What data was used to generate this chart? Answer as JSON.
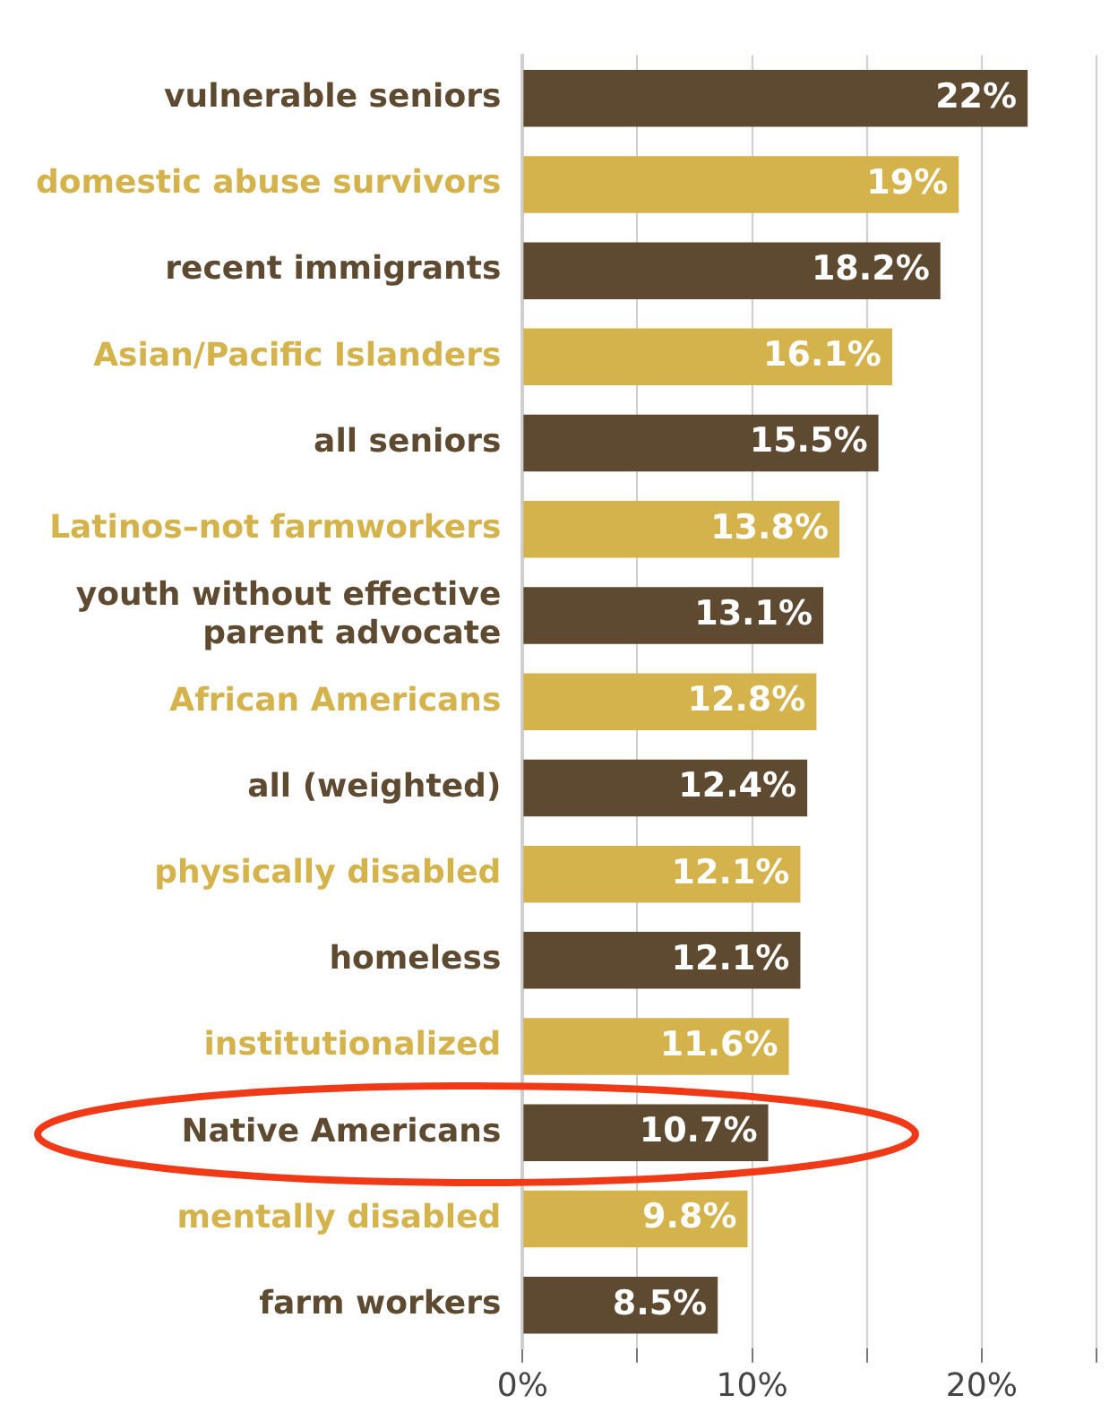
{
  "chart_data": {
    "type": "bar",
    "orientation": "horizontal",
    "categories": [
      "vulnerable seniors",
      "domestic abuse survivors",
      "recent immigrants",
      "Asian/Pacific Islanders",
      "all seniors",
      "Latinos–not farmworkers",
      "youth without effective parent advocate",
      "African Americans",
      "all (weighted)",
      "physically disabled",
      "homeless",
      "institutionalized",
      "Native Americans",
      "mentally disabled",
      "farm workers"
    ],
    "values": [
      22,
      19,
      18.2,
      16.1,
      15.5,
      13.8,
      13.1,
      12.8,
      12.4,
      12.1,
      12.1,
      11.6,
      10.7,
      9.8,
      8.5
    ],
    "colors": [
      "#5e4a30",
      "#d4b24c",
      "#5e4a30",
      "#d4b24c",
      "#5e4a30",
      "#d4b24c",
      "#5e4a30",
      "#d4b24c",
      "#5e4a30",
      "#d4b24c",
      "#5e4a30",
      "#d4b24c",
      "#5e4a30",
      "#d4b24c",
      "#5e4a30"
    ],
    "value_labels": [
      "22%",
      "19%",
      "18.2%",
      "16.1%",
      "15.5%",
      "13.8%",
      "13.1%",
      "12.8%",
      "12.4%",
      "12.1%",
      "12.1%",
      "11.6%",
      "10.7%",
      "9.8%",
      "8.5%"
    ],
    "xlim": [
      0,
      25
    ],
    "xticks": [
      {
        "value": 0,
        "label": "0%"
      },
      {
        "value": 5,
        "label": null
      },
      {
        "value": 10,
        "label": "10%"
      },
      {
        "value": 15,
        "label": null
      },
      {
        "value": 20,
        "label": "20%"
      },
      {
        "value": 25,
        "label": null
      }
    ],
    "grid": "x",
    "legend": false
  }
}
